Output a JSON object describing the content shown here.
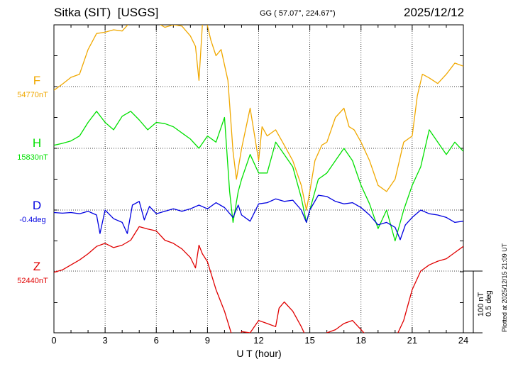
{
  "header": {
    "station": "Sitka (SIT)",
    "source": "[USGS]",
    "coords": "GG ( 57.07°, 224.67°)",
    "date": "2025/12/12"
  },
  "footer": {
    "plotted": "Plotted at 2025/12/15 21:09 UT"
  },
  "scale_bar": {
    "nt": "100 nT",
    "deg": "0.5 deg"
  },
  "colors": {
    "F": "#f0a800",
    "H": "#00e000",
    "D": "#0000e0",
    "Z": "#e00000"
  },
  "chart_data": {
    "type": "line",
    "title": "Sitka (SIT)  [USGS]",
    "xlabel": "U T (hour)",
    "xlim": [
      0,
      24
    ],
    "xticks": [
      "0",
      "3",
      "6",
      "9",
      "12",
      "15",
      "18",
      "21",
      "24"
    ],
    "scale": "100 nT / 0.5 deg per division",
    "grid": true,
    "series": [
      {
        "name": "F",
        "baseline_label": "54770nT",
        "units": "nT",
        "baseline": 54770,
        "points": [
          [
            0,
            54764
          ],
          [
            0.5,
            54774
          ],
          [
            1,
            54785
          ],
          [
            1.5,
            54790
          ],
          [
            2,
            54830
          ],
          [
            2.5,
            54856
          ],
          [
            3,
            54858
          ],
          [
            3.5,
            54862
          ],
          [
            4,
            54860
          ],
          [
            4.5,
            54875
          ],
          [
            5,
            54885
          ],
          [
            5.5,
            54890
          ],
          [
            6,
            54874
          ],
          [
            6.5,
            54866
          ],
          [
            7,
            54870
          ],
          [
            7.5,
            54868
          ],
          [
            8,
            54852
          ],
          [
            8.3,
            54835
          ],
          [
            8.5,
            54780
          ],
          [
            8.7,
            54870
          ],
          [
            8.9,
            54880
          ],
          [
            9.2,
            54845
          ],
          [
            9.5,
            54820
          ],
          [
            9.8,
            54830
          ],
          [
            10.2,
            54780
          ],
          [
            10.5,
            54665
          ],
          [
            10.7,
            54620
          ],
          [
            11,
            54670
          ],
          [
            11.5,
            54735
          ],
          [
            12,
            54650
          ],
          [
            12.2,
            54705
          ],
          [
            12.5,
            54690
          ],
          [
            13,
            54700
          ],
          [
            13.5,
            54675
          ],
          [
            14,
            54650
          ],
          [
            14.5,
            54610
          ],
          [
            14.8,
            54570
          ],
          [
            15,
            54600
          ],
          [
            15.3,
            54650
          ],
          [
            15.7,
            54675
          ],
          [
            16,
            54680
          ],
          [
            16.5,
            54720
          ],
          [
            17,
            54735
          ],
          [
            17.3,
            54705
          ],
          [
            17.6,
            54700
          ],
          [
            18,
            54680
          ],
          [
            18.5,
            54650
          ],
          [
            19,
            54610
          ],
          [
            19.5,
            54600
          ],
          [
            20,
            54620
          ],
          [
            20.5,
            54680
          ],
          [
            21,
            54690
          ],
          [
            21.3,
            54755
          ],
          [
            21.6,
            54790
          ],
          [
            22,
            54784
          ],
          [
            22.5,
            54775
          ],
          [
            23,
            54790
          ],
          [
            23.5,
            54808
          ],
          [
            24,
            54803
          ]
        ]
      },
      {
        "name": "H",
        "baseline_label": "15830nT",
        "units": "nT",
        "baseline": 15830,
        "points": [
          [
            0,
            15835
          ],
          [
            0.5,
            15838
          ],
          [
            1,
            15842
          ],
          [
            1.5,
            15850
          ],
          [
            2,
            15872
          ],
          [
            2.5,
            15890
          ],
          [
            3,
            15872
          ],
          [
            3.5,
            15860
          ],
          [
            4,
            15882
          ],
          [
            4.5,
            15890
          ],
          [
            5,
            15876
          ],
          [
            5.5,
            15860
          ],
          [
            6,
            15872
          ],
          [
            6.5,
            15870
          ],
          [
            7,
            15865
          ],
          [
            7.5,
            15855
          ],
          [
            8,
            15845
          ],
          [
            8.5,
            15830
          ],
          [
            9,
            15850
          ],
          [
            9.5,
            15840
          ],
          [
            10,
            15880
          ],
          [
            10.3,
            15760
          ],
          [
            10.5,
            15710
          ],
          [
            10.8,
            15760
          ],
          [
            11,
            15780
          ],
          [
            11.5,
            15820
          ],
          [
            12,
            15790
          ],
          [
            12.5,
            15790
          ],
          [
            13,
            15840
          ],
          [
            13.5,
            15820
          ],
          [
            14,
            15800
          ],
          [
            14.5,
            15750
          ],
          [
            14.8,
            15710
          ],
          [
            15,
            15730
          ],
          [
            15.5,
            15780
          ],
          [
            16,
            15790
          ],
          [
            16.5,
            15810
          ],
          [
            17,
            15830
          ],
          [
            17.5,
            15810
          ],
          [
            18,
            15770
          ],
          [
            18.5,
            15740
          ],
          [
            19,
            15700
          ],
          [
            19.5,
            15730
          ],
          [
            20,
            15680
          ],
          [
            20.5,
            15730
          ],
          [
            21,
            15770
          ],
          [
            21.5,
            15800
          ],
          [
            22,
            15860
          ],
          [
            22.5,
            15840
          ],
          [
            23,
            15820
          ],
          [
            23.5,
            15840
          ],
          [
            24,
            15825
          ]
        ]
      },
      {
        "name": "D",
        "baseline_label": "-0.4deg",
        "units": "deg",
        "baseline": -0.4,
        "points": [
          [
            0,
            -0.42
          ],
          [
            0.5,
            -0.425
          ],
          [
            1,
            -0.42
          ],
          [
            1.5,
            -0.43
          ],
          [
            2,
            -0.41
          ],
          [
            2.5,
            -0.44
          ],
          [
            2.7,
            -0.59
          ],
          [
            3,
            -0.4
          ],
          [
            3.5,
            -0.47
          ],
          [
            4,
            -0.5
          ],
          [
            4.3,
            -0.59
          ],
          [
            4.6,
            -0.36
          ],
          [
            5,
            -0.33
          ],
          [
            5.3,
            -0.48
          ],
          [
            5.6,
            -0.37
          ],
          [
            6,
            -0.43
          ],
          [
            6.5,
            -0.41
          ],
          [
            7,
            -0.39
          ],
          [
            7.5,
            -0.41
          ],
          [
            8,
            -0.39
          ],
          [
            8.5,
            -0.36
          ],
          [
            9,
            -0.39
          ],
          [
            9.5,
            -0.34
          ],
          [
            10,
            -0.38
          ],
          [
            10.5,
            -0.46
          ],
          [
            10.8,
            -0.36
          ],
          [
            11,
            -0.44
          ],
          [
            11.5,
            -0.49
          ],
          [
            12,
            -0.35
          ],
          [
            12.5,
            -0.34
          ],
          [
            13,
            -0.31
          ],
          [
            13.5,
            -0.33
          ],
          [
            14,
            -0.32
          ],
          [
            14.5,
            -0.4
          ],
          [
            14.8,
            -0.5
          ],
          [
            15,
            -0.4
          ],
          [
            15.5,
            -0.28
          ],
          [
            16,
            -0.29
          ],
          [
            16.5,
            -0.33
          ],
          [
            17,
            -0.35
          ],
          [
            17.5,
            -0.34
          ],
          [
            18,
            -0.38
          ],
          [
            18.5,
            -0.44
          ],
          [
            19,
            -0.52
          ],
          [
            19.5,
            -0.5
          ],
          [
            20,
            -0.54
          ],
          [
            20.3,
            -0.64
          ],
          [
            20.6,
            -0.52
          ],
          [
            21,
            -0.46
          ],
          [
            21.5,
            -0.4
          ],
          [
            22,
            -0.43
          ],
          [
            22.5,
            -0.44
          ],
          [
            23,
            -0.46
          ],
          [
            23.5,
            -0.5
          ],
          [
            24,
            -0.49
          ]
        ]
      },
      {
        "name": "Z",
        "baseline_label": "52440nT",
        "units": "nT",
        "baseline": 52440,
        "points": [
          [
            0,
            52438
          ],
          [
            0.5,
            52442
          ],
          [
            1,
            52450
          ],
          [
            1.5,
            52458
          ],
          [
            2,
            52468
          ],
          [
            2.5,
            52480
          ],
          [
            3,
            52485
          ],
          [
            3.5,
            52478
          ],
          [
            4,
            52482
          ],
          [
            4.5,
            52490
          ],
          [
            5,
            52512
          ],
          [
            5.5,
            52508
          ],
          [
            6,
            52505
          ],
          [
            6.5,
            52490
          ],
          [
            7,
            52485
          ],
          [
            7.5,
            52476
          ],
          [
            8,
            52462
          ],
          [
            8.3,
            52445
          ],
          [
            8.5,
            52482
          ],
          [
            8.7,
            52468
          ],
          [
            9,
            52455
          ],
          [
            9.5,
            52410
          ],
          [
            10,
            52375
          ],
          [
            10.5,
            52330
          ],
          [
            10.8,
            52325
          ],
          [
            11,
            52342
          ],
          [
            11.5,
            52340
          ],
          [
            12,
            52360
          ],
          [
            12.5,
            52355
          ],
          [
            13,
            52350
          ],
          [
            13.2,
            52380
          ],
          [
            13.5,
            52390
          ],
          [
            14,
            52375
          ],
          [
            14.5,
            52350
          ],
          [
            15,
            52320
          ],
          [
            15.5,
            52330
          ],
          [
            16,
            52340
          ],
          [
            16.5,
            52345
          ],
          [
            17,
            52355
          ],
          [
            17.5,
            52360
          ],
          [
            18,
            52345
          ],
          [
            18.5,
            52330
          ],
          [
            19,
            52322
          ],
          [
            19.5,
            52325
          ],
          [
            20,
            52330
          ],
          [
            20.5,
            52360
          ],
          [
            21,
            52410
          ],
          [
            21.5,
            52440
          ],
          [
            22,
            52450
          ],
          [
            22.5,
            52456
          ],
          [
            23,
            52460
          ],
          [
            23.5,
            52470
          ],
          [
            24,
            52480
          ]
        ]
      }
    ]
  }
}
